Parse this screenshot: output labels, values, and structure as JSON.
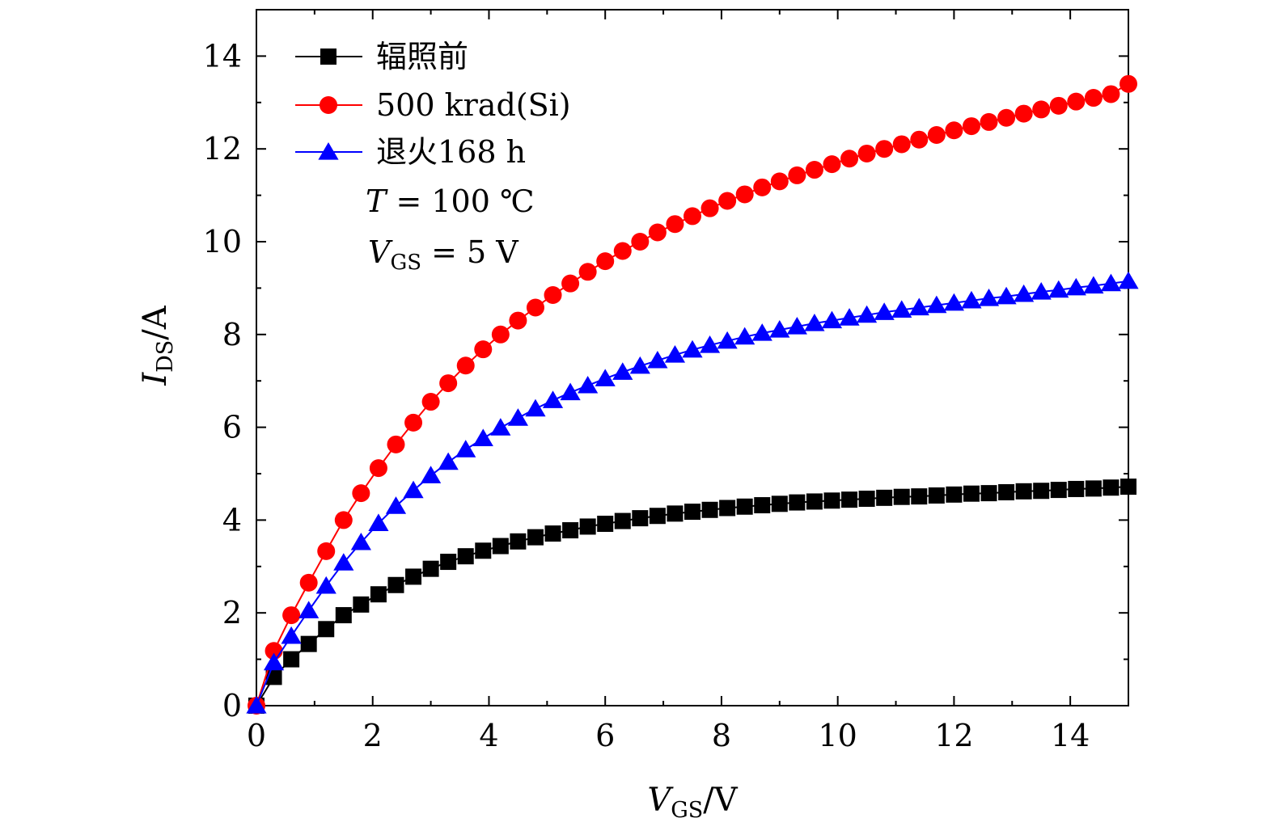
{
  "chart_data": {
    "type": "line",
    "xlabel": {
      "main": "V",
      "sub": "GS",
      "unit": "/V"
    },
    "ylabel": {
      "main": "I",
      "sub": "DS",
      "unit": "/A"
    },
    "xlim": [
      0,
      15
    ],
    "ylim": [
      0,
      15
    ],
    "xticks": [
      0,
      2,
      4,
      6,
      8,
      10,
      12,
      14
    ],
    "yticks": [
      0,
      2,
      4,
      6,
      8,
      10,
      12,
      14
    ],
    "grid": false,
    "legend_placement": "top-left",
    "annotations": [
      {
        "italic": "T",
        "rest": " = 100 ℃"
      },
      {
        "italic": "V",
        "sub": "GS",
        "rest": " = 5 V"
      }
    ],
    "x": [
      0,
      0.3,
      0.6,
      0.9,
      1.2,
      1.5,
      1.8,
      2.1,
      2.4,
      2.7,
      3.0,
      3.3,
      3.6,
      3.9,
      4.2,
      4.5,
      4.8,
      5.1,
      5.4,
      5.7,
      6.0,
      6.3,
      6.6,
      6.9,
      7.2,
      7.5,
      7.8,
      8.1,
      8.4,
      8.7,
      9.0,
      9.3,
      9.6,
      9.9,
      10.2,
      10.5,
      10.8,
      11.1,
      11.4,
      11.7,
      12.0,
      12.3,
      12.6,
      12.9,
      13.2,
      13.5,
      13.8,
      14.1,
      14.4,
      14.7,
      15.0
    ],
    "series": [
      {
        "name": "辐照前",
        "color": "#000000",
        "marker": "square",
        "values": [
          0,
          0.62,
          1.0,
          1.33,
          1.65,
          1.95,
          2.18,
          2.4,
          2.6,
          2.78,
          2.95,
          3.1,
          3.22,
          3.34,
          3.44,
          3.54,
          3.63,
          3.71,
          3.78,
          3.86,
          3.92,
          3.98,
          4.04,
          4.09,
          4.14,
          4.18,
          4.22,
          4.26,
          4.29,
          4.32,
          4.35,
          4.38,
          4.4,
          4.42,
          4.44,
          4.46,
          4.48,
          4.5,
          4.51,
          4.53,
          4.55,
          4.57,
          4.58,
          4.6,
          4.62,
          4.63,
          4.65,
          4.67,
          4.68,
          4.7,
          4.72
        ]
      },
      {
        "name": "500 krad(Si)",
        "color": "#ff0000",
        "marker": "circle",
        "values": [
          0,
          1.18,
          1.95,
          2.65,
          3.33,
          4.0,
          4.58,
          5.12,
          5.63,
          6.1,
          6.55,
          6.95,
          7.33,
          7.68,
          8.0,
          8.3,
          8.58,
          8.85,
          9.1,
          9.35,
          9.58,
          9.8,
          10.0,
          10.2,
          10.38,
          10.55,
          10.72,
          10.88,
          11.02,
          11.17,
          11.3,
          11.43,
          11.55,
          11.67,
          11.79,
          11.9,
          12.0,
          12.1,
          12.2,
          12.3,
          12.4,
          12.49,
          12.58,
          12.67,
          12.76,
          12.85,
          12.93,
          13.02,
          13.1,
          13.18,
          13.4
        ]
      },
      {
        "name": "退火168 h",
        "color": "#0000ff",
        "marker": "triangle",
        "values": [
          0,
          0.93,
          1.5,
          2.05,
          2.58,
          3.08,
          3.52,
          3.93,
          4.3,
          4.64,
          4.96,
          5.25,
          5.52,
          5.76,
          5.99,
          6.2,
          6.4,
          6.58,
          6.75,
          6.9,
          7.05,
          7.19,
          7.32,
          7.44,
          7.56,
          7.67,
          7.77,
          7.86,
          7.95,
          8.03,
          8.1,
          8.17,
          8.24,
          8.3,
          8.36,
          8.42,
          8.48,
          8.53,
          8.58,
          8.63,
          8.68,
          8.73,
          8.78,
          8.82,
          8.87,
          8.92,
          8.96,
          9.01,
          9.05,
          9.1,
          9.15
        ]
      }
    ]
  }
}
